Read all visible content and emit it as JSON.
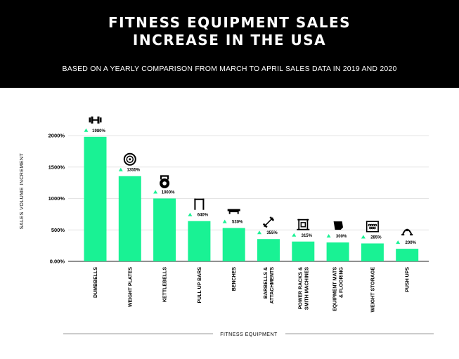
{
  "header": {
    "title_line1": "FITNESS EQUIPMENT SALES",
    "title_line2": "INCREASE IN THE USA",
    "subtitle": "BASED ON A YEARLY COMPARISON FROM MARCH TO APRIL SALES DATA IN 2019 AND 2020"
  },
  "colors": {
    "header_bg": "#000000",
    "bar": "#19f294",
    "marker": "#19f294",
    "text": "#000000",
    "grid": "#e4e4e4"
  },
  "chart_data": {
    "type": "bar",
    "xlabel": "FITNESS EQUIPMENT",
    "ylabel": "SALES VOLUME INCREMENT",
    "ylim": [
      0,
      2000
    ],
    "yticks": [
      0,
      500,
      1000,
      1500,
      2000
    ],
    "ytick_labels": [
      "0.00%",
      "500%",
      "1000%",
      "1500%",
      "2000%"
    ],
    "grid": true,
    "categories": [
      [
        "DUMBBELLS"
      ],
      [
        "WEIGHT PLATES"
      ],
      [
        "KETTLEBELLS"
      ],
      [
        "PULL UP BARS"
      ],
      [
        "BENCHES"
      ],
      [
        "BARBELLS &",
        "ATTACHMENTS"
      ],
      [
        "POWER RACKS &",
        "SMITH MACHINES"
      ],
      [
        "EQUIPMENT MATS",
        "& FLOORING"
      ],
      [
        "WEIGHT STORAGE"
      ],
      [
        "PUSH UPS"
      ]
    ],
    "values": [
      1980,
      1355,
      1000,
      640,
      530,
      355,
      315,
      300,
      285,
      200
    ],
    "data_labels": [
      "1980%",
      "1355%",
      "1000%",
      "640%",
      "530%",
      "355%",
      "315%",
      "300%",
      "285%",
      "200%"
    ],
    "icons": [
      "dumbbell-icon",
      "weight-plate-icon",
      "kettlebell-icon",
      "pull-up-bar-icon",
      "bench-icon",
      "barbell-icon",
      "power-rack-icon",
      "floor-mat-icon",
      "weight-storage-icon",
      "push-up-icon"
    ]
  }
}
